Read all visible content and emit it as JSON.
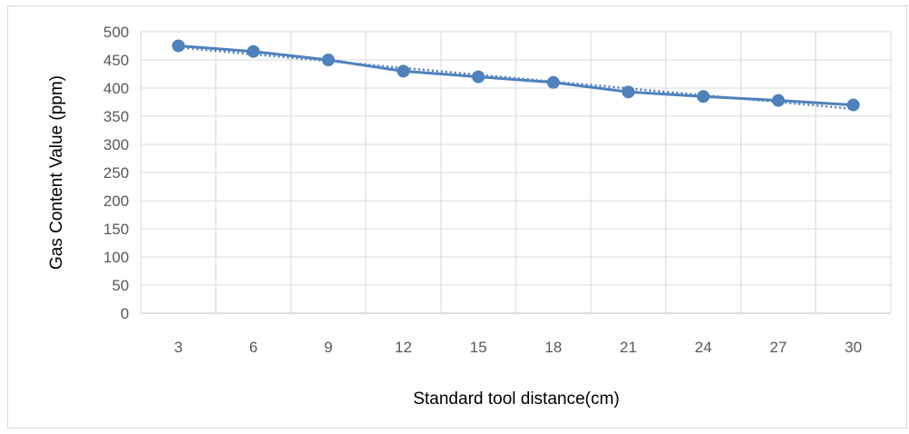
{
  "chart_data": {
    "type": "line",
    "title": "",
    "xlabel": "Standard tool distance(cm)",
    "ylabel": "Gas Content Value (ppm)",
    "categories": [
      "3",
      "6",
      "9",
      "12",
      "15",
      "18",
      "21",
      "24",
      "27",
      "30"
    ],
    "series": [
      {
        "values": [
          475,
          465,
          450,
          430,
          420,
          410,
          393,
          385,
          378,
          370
        ],
        "color": "#4f81bd",
        "marker": "circle"
      }
    ],
    "trendline": {
      "style": "dotted",
      "type": "linear",
      "color": "#4f81bd"
    },
    "ylim": [
      0,
      500
    ],
    "yticks": [
      "0",
      "50",
      "100",
      "150",
      "200",
      "250",
      "300",
      "350",
      "400",
      "450",
      "500"
    ],
    "grid": {
      "horizontal": true,
      "vertical": true
    },
    "legend": "none"
  }
}
